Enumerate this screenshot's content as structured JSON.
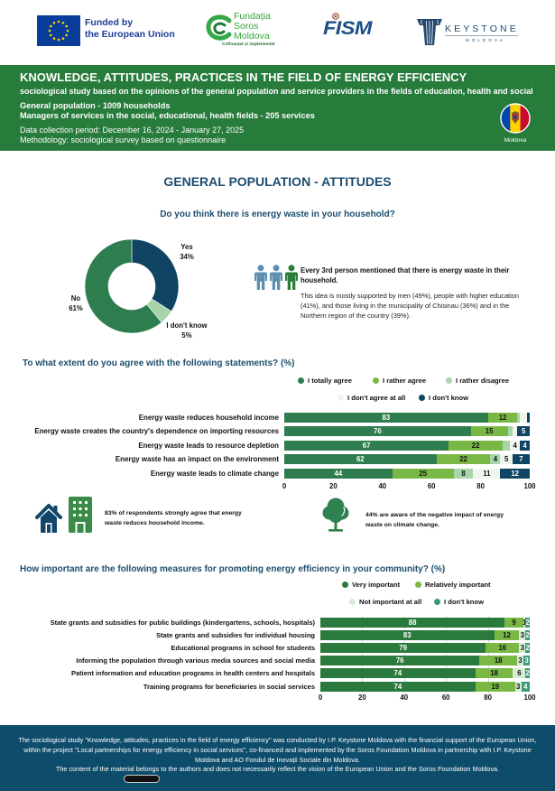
{
  "logos": {
    "eu": {
      "line1": "Funded by",
      "line2": "the European Union"
    },
    "soros": {
      "line1": "Fundația",
      "line2": "Soros",
      "line3": "Moldova",
      "tagline": "Cofinanțat și implementat"
    },
    "fism": {
      "name": "FISM"
    },
    "keystone": {
      "name": "KEYSTONE",
      "sub": "MOLDOVA"
    }
  },
  "header": {
    "title": "KNOWLEDGE, ATTITUDES, PRACTICES IN THE FIELD OF ENERGY EFFICIENCY",
    "subtitle": "sociological study based on the opinions of the general population and service providers in the fields of education, health and social",
    "sample_1": "General population - 1009 households",
    "sample_2": "Managers of services in the social, educational, health fields - 205 services",
    "period": "Data collection period: December 16, 2024 - January 27, 2025",
    "methodology": "Methodology: sociological survey based on questionnaire",
    "flag_label": "Moldova"
  },
  "section_title": "GENERAL POPULATION - ATTITUDES",
  "colors": {
    "header_green": "#277b3b",
    "title_navy": "#1c4e6f",
    "footer_bg": "#0e4c6b",
    "people_icon_blue": "#5e8fae",
    "people_icon_green": "#2b7d3a"
  },
  "insights": {
    "household_bold": "Every 3rd person mentioned that there is energy waste in their household.",
    "household_text": "This idea is mostly supported by men (49%), people with higher education (41%), and those living in the municipality of Chisinau (36%) and in the Northern region of the country (39%).",
    "income": "83% of respondents strongly agree that energy waste reduces household income.",
    "climate": "44% are aware of the negative impact of energy waste on climate change."
  },
  "chart_data": [
    {
      "type": "pie",
      "style": "donut",
      "title": "Do you think there is energy waste in your household?",
      "slices": [
        {
          "label": "Yes",
          "value": 34,
          "display": "34%",
          "color": "#0f4463"
        },
        {
          "label": "I don't know",
          "value": 5,
          "display": "5%",
          "color": "#a6d4a8"
        },
        {
          "label": "No",
          "value": 61,
          "display": "61%",
          "color": "#2e7d4f"
        }
      ]
    },
    {
      "type": "bar",
      "orientation": "horizontal",
      "stacked": true,
      "title": "To what extent do you agree with the following statements? (%)",
      "categories": [
        "Energy waste reduces household income",
        "Energy waste creates the country's dependence on importing resources",
        "Energy waste leads to resource depletion",
        "Energy waste has an impact on the environment",
        "Energy waste leads to climate change"
      ],
      "series": [
        {
          "name": "I totally agree",
          "color": "#2e7d4f",
          "values": [
            83,
            76,
            67,
            62,
            44
          ]
        },
        {
          "name": "I rather agree",
          "color": "#7ab845",
          "values": [
            12,
            15,
            22,
            22,
            25
          ]
        },
        {
          "name": "I rather disagree",
          "color": "#a8d5aa",
          "values": [
            1,
            2,
            3,
            4,
            8
          ]
        },
        {
          "name": "I don't agree at all",
          "color": "#eef6ee",
          "values": [
            3,
            2,
            4,
            5,
            11
          ]
        },
        {
          "name": "I don't know",
          "color": "#0f4463",
          "values": [
            1,
            5,
            4,
            7,
            12
          ]
        }
      ],
      "xlim": [
        0,
        100
      ],
      "xticks": [
        0,
        20,
        40,
        60,
        80,
        100
      ],
      "legend": "top-right",
      "grid": false
    },
    {
      "type": "bar",
      "orientation": "horizontal",
      "stacked": true,
      "title": "How important are the following measures for promoting energy efficiency in your community? (%)",
      "categories": [
        "State grants and subsidies for public buildings (kindergartens, schools, hospitals)",
        "State grants and subsidies for individual housing",
        "Educational programs in school for students",
        "Informing the population through various media sources and social media",
        "Patient information and education programs in health centers and hospitals",
        "Training programs for beneficiaries in social services"
      ],
      "series": [
        {
          "name": "Very important",
          "color": "#2a7a3e",
          "values": [
            88,
            83,
            79,
            76,
            74,
            74
          ]
        },
        {
          "name": "Relatively important",
          "color": "#7ab845",
          "values": [
            9,
            12,
            16,
            18,
            18,
            19
          ]
        },
        {
          "name": "Not important at all",
          "color": "#d6ecd4",
          "values": [
            1,
            3,
            3,
            3,
            6,
            3
          ]
        },
        {
          "name": "I don't know",
          "color": "#3a9a7a",
          "values": [
            2,
            2,
            2,
            3,
            2,
            4
          ]
        }
      ],
      "xlim": [
        0,
        100
      ],
      "xticks": [
        0,
        20,
        40,
        60,
        80,
        100
      ],
      "legend": "top-right",
      "grid": true
    }
  ],
  "footer": {
    "paragraph": "The sociological study \"Knowledge, attitudes, practices in the field of energy efficiency\" was conducted by I.P. Keystone Moldova with the financial support of the European Union, within the project \"Local partnerships for energy efficiency in social services\", co-financed and implemented by the Soros Foundation Moldova in partnership with I.P. Keystone Moldova and AO Fondul de Inovații Sociale din Moldova.",
    "disclaimer": "The content of the material belongs to the authors and does not necessarily reflect the vision of the European Union and the Soros Foundation Moldova."
  }
}
